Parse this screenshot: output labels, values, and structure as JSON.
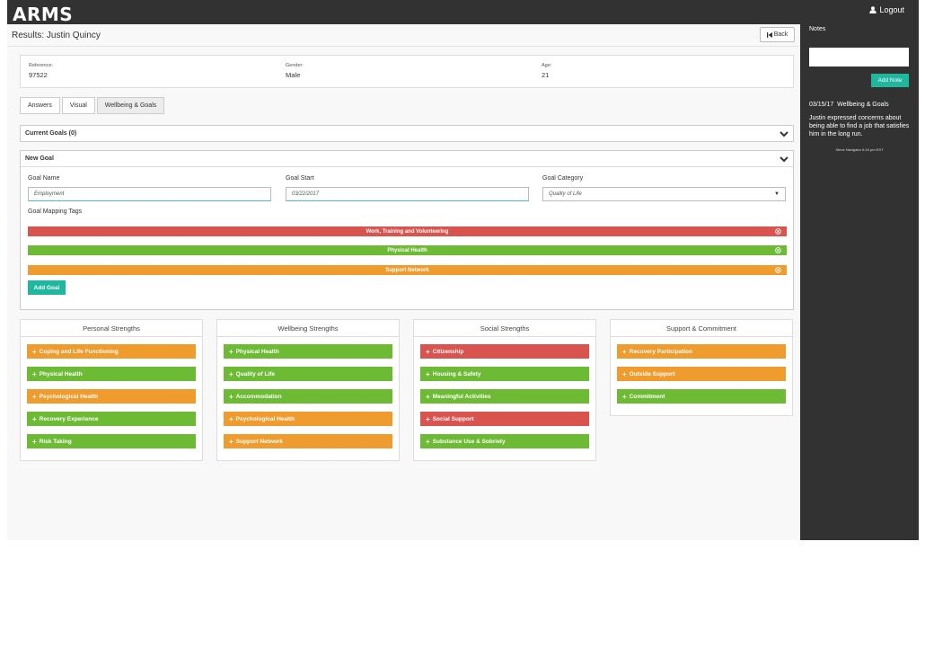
{
  "app": {
    "logo": "ARMS",
    "logout_label": "Logout"
  },
  "colors": {
    "orange": "#ef9b2d",
    "green": "#6dbb35",
    "red": "#d9534f",
    "teal": "#1fb79d",
    "dark": "#323232"
  },
  "header": {
    "title": "Results: Justin Quincy",
    "back_label": "Back"
  },
  "info": {
    "reference_label": "Reference:",
    "reference_value": "97522",
    "gender_label": "Gender:",
    "gender_value": "Male",
    "age_label": "Age:",
    "age_value": "21"
  },
  "tabs": [
    {
      "label": "Answers"
    },
    {
      "label": "Visual"
    },
    {
      "label": "Wellbeing & Goals",
      "active": true
    }
  ],
  "current_goals": {
    "label": "Current Goals (0)"
  },
  "new_goal": {
    "header": "New Goal",
    "goal_name_label": "Goal Name",
    "goal_name_value": "Employment",
    "goal_start_label": "Goal Start",
    "goal_start_value": "03/22/2017",
    "goal_category_label": "Goal Category",
    "goal_category_value": "Quality of Life",
    "mapping_tags_label": "Goal Mapping Tags",
    "tags": [
      {
        "label": "Work, Training and Volunteering",
        "color": "red"
      },
      {
        "label": "Physical Health",
        "color": "green"
      },
      {
        "label": "Support Network",
        "color": "orange"
      }
    ],
    "add_goal_label": "Add Goal"
  },
  "strengths": [
    {
      "title": "Personal Strengths",
      "items": [
        {
          "label": "Coping and Life Functioning",
          "color": "orange"
        },
        {
          "label": "Physical Health",
          "color": "green"
        },
        {
          "label": "Psychological Health",
          "color": "orange"
        },
        {
          "label": "Recovery Experience",
          "color": "green"
        },
        {
          "label": "Risk Taking",
          "color": "green"
        }
      ]
    },
    {
      "title": "Wellbeing Strengths",
      "items": [
        {
          "label": "Physical Health",
          "color": "green"
        },
        {
          "label": "Quality of Life",
          "color": "green"
        },
        {
          "label": "Accommodation",
          "color": "green"
        },
        {
          "label": "Psychological Health",
          "color": "orange"
        },
        {
          "label": "Support Network",
          "color": "orange"
        }
      ]
    },
    {
      "title": "Social Strengths",
      "items": [
        {
          "label": "Citizenship",
          "color": "red"
        },
        {
          "label": "Housing & Safety",
          "color": "green"
        },
        {
          "label": "Meaningful Activities",
          "color": "green"
        },
        {
          "label": "Social Support",
          "color": "red"
        },
        {
          "label": "Substance Use & Sobriety",
          "color": "green"
        }
      ]
    },
    {
      "title": "Support & Commitment",
      "items": [
        {
          "label": "Recovery Participation",
          "color": "orange"
        },
        {
          "label": "Outside Support",
          "color": "orange"
        },
        {
          "label": "Commitment",
          "color": "green"
        }
      ]
    }
  ],
  "notes": {
    "label": "Notes",
    "add_note_label": "Add Note",
    "entry_date": "03/15/17",
    "entry_category": "Wellbeing & Goals",
    "entry_text": "Justin  expressed concerns about being able to find a job that satisfies him in the long run.",
    "entry_author": "Steve Navigator 6:15 pm EST"
  }
}
